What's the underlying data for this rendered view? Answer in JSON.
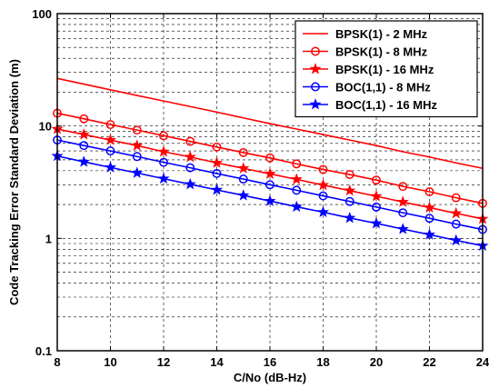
{
  "chart_data": {
    "type": "line",
    "title": "",
    "xlabel": "C/No (dB-Hz)",
    "ylabel": "Code Tracking Error Standard Deviation (m)",
    "xlim": [
      8,
      24
    ],
    "ylim": [
      0.1,
      100
    ],
    "yscale": "log",
    "grid": true,
    "legend_position": "top-right",
    "x_ticks": [
      8,
      10,
      12,
      14,
      16,
      18,
      20,
      22,
      24
    ],
    "x_tick_labels": [
      "8",
      "10",
      "12",
      "14",
      "16",
      "18",
      "20",
      "22",
      "24"
    ],
    "y_ticks": [
      0.1,
      1,
      10,
      100
    ],
    "y_tick_labels": [
      "0.1",
      "1",
      "10",
      "100"
    ],
    "x": [
      8,
      9,
      10,
      11,
      12,
      13,
      14,
      15,
      16,
      17,
      18,
      19,
      20,
      21,
      22,
      23,
      24
    ],
    "series": [
      {
        "name": "BPSK(1) - 2 MHz",
        "color": "#ff0000",
        "marker": "none",
        "values": [
          26.5,
          23.6,
          21.0,
          18.7,
          16.7,
          14.9,
          13.3,
          11.8,
          10.5,
          9.4,
          8.4,
          7.5,
          6.7,
          5.9,
          5.3,
          4.7,
          4.2
        ]
      },
      {
        "name": "BPSK(1) - 8 MHz",
        "color": "#ff0000",
        "marker": "circle",
        "values": [
          13.0,
          11.6,
          10.3,
          9.2,
          8.2,
          7.3,
          6.5,
          5.8,
          5.2,
          4.6,
          4.1,
          3.7,
          3.3,
          2.9,
          2.6,
          2.3,
          2.05
        ]
      },
      {
        "name": "BPSK(1) - 16 MHz",
        "color": "#ff0000",
        "marker": "star",
        "values": [
          9.4,
          8.4,
          7.5,
          6.7,
          5.9,
          5.3,
          4.7,
          4.2,
          3.75,
          3.35,
          2.98,
          2.66,
          2.37,
          2.11,
          1.88,
          1.67,
          1.49
        ]
      },
      {
        "name": "BOC(1,1) - 8 MHz",
        "color": "#0000ff",
        "marker": "circle",
        "values": [
          7.5,
          6.7,
          6.0,
          5.35,
          4.75,
          4.25,
          3.78,
          3.37,
          3.0,
          2.68,
          2.39,
          2.13,
          1.9,
          1.69,
          1.51,
          1.34,
          1.2
        ]
      },
      {
        "name": "BOC(1,1) - 16 MHz",
        "color": "#0000ff",
        "marker": "star",
        "values": [
          5.4,
          4.8,
          4.28,
          3.82,
          3.4,
          3.03,
          2.7,
          2.41,
          2.15,
          1.91,
          1.71,
          1.52,
          1.36,
          1.21,
          1.08,
          0.96,
          0.86
        ]
      }
    ]
  }
}
